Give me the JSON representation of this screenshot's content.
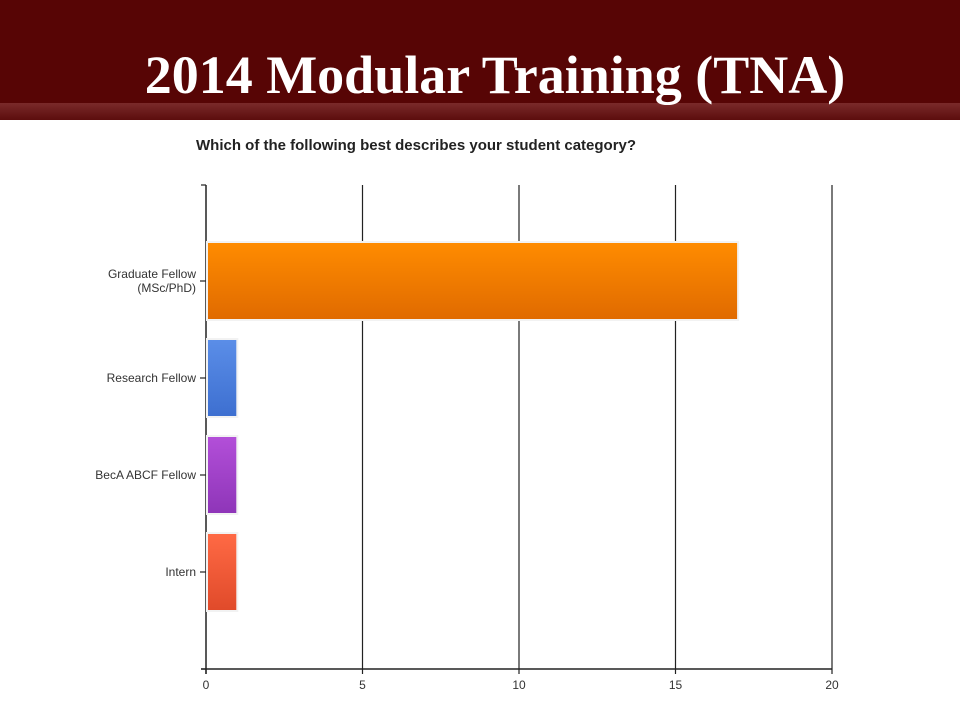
{
  "slide": {
    "title": "2014 Modular Training (TNA)"
  },
  "chart_data": {
    "type": "bar",
    "orientation": "horizontal",
    "title": "Which of the following best describes your student category?",
    "categories": [
      "Graduate Fellow (MSc/PhD)",
      "Research Fellow",
      "BecA ABCF Fellow",
      "Intern"
    ],
    "category_lines": [
      [
        "Graduate Fellow",
        "(MSc/PhD)"
      ],
      [
        "Research Fellow"
      ],
      [
        "BecA ABCF Fellow"
      ],
      [
        "Intern"
      ]
    ],
    "values": [
      17,
      1,
      1,
      1
    ],
    "bar_colors": [
      [
        "#ff8c00",
        "#e06a00"
      ],
      [
        "#5b8ee8",
        "#3d6fd0"
      ],
      [
        "#b34fd9",
        "#8e35b8"
      ],
      [
        "#ff6a45",
        "#e04a2a"
      ]
    ],
    "xlim": [
      0,
      20
    ],
    "xticks": [
      0,
      5,
      10,
      15,
      20
    ],
    "grid": true,
    "xlabel": "",
    "ylabel": ""
  },
  "colors": {
    "header_bg": "#570505",
    "title_text": "#ffffff"
  }
}
